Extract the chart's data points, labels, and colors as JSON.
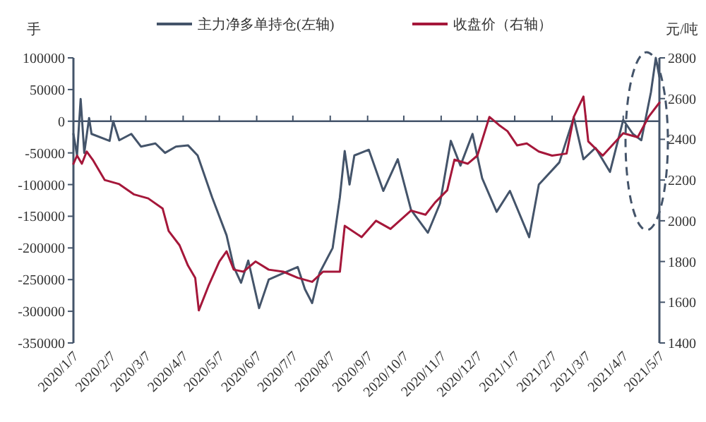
{
  "chart_data": {
    "type": "line",
    "ylabel": "手",
    "y2label": "元/吨",
    "legend": "top",
    "marker": "none",
    "line_style": "solid",
    "xlim": [
      "2020-01-07",
      "2021-05-07"
    ],
    "xticks": [
      {
        "value": "2020-01-07",
        "label": "2020/1/7"
      },
      {
        "value": "2020-02-07",
        "label": "2020/2/7"
      },
      {
        "value": "2020-03-07",
        "label": "2020/3/7"
      },
      {
        "value": "2020-04-07",
        "label": "2020/4/7"
      },
      {
        "value": "2020-05-07",
        "label": "2020/5/7"
      },
      {
        "value": "2020-06-07",
        "label": "2020/6/7"
      },
      {
        "value": "2020-07-07",
        "label": "2020/7/7"
      },
      {
        "value": "2020-08-07",
        "label": "2020/8/7"
      },
      {
        "value": "2020-09-07",
        "label": "2020/9/7"
      },
      {
        "value": "2020-10-07",
        "label": "2020/10/7"
      },
      {
        "value": "2020-11-07",
        "label": "2020/11/7"
      },
      {
        "value": "2020-12-07",
        "label": "2020/12/7"
      },
      {
        "value": "2021-01-07",
        "label": "2021/1/7"
      },
      {
        "value": "2021-02-07",
        "label": "2021/2/7"
      },
      {
        "value": "2021-03-07",
        "label": "2021/3/7"
      },
      {
        "value": "2021-04-07",
        "label": "2021/4/7"
      },
      {
        "value": "2021-05-07",
        "label": "2021/5/7"
      }
    ],
    "ylim": [
      -350000,
      100000
    ],
    "yticks": [
      -350000,
      -300000,
      -250000,
      -200000,
      -150000,
      -100000,
      -50000,
      0,
      50000,
      100000
    ],
    "y2lim": [
      1400,
      2800
    ],
    "y2ticks": [
      1400,
      1600,
      1800,
      2000,
      2200,
      2400,
      2600,
      2800
    ],
    "series": [
      {
        "name": "主力净多单持仓(左轴)",
        "color": "#44546a",
        "x": [
          "2020-01-07",
          "2020-01-10",
          "2020-01-13",
          "2020-01-16",
          "2020-01-20",
          "2020-01-22",
          "2020-02-06",
          "2020-02-09",
          "2020-02-14",
          "2020-02-24",
          "2020-03-03",
          "2020-03-15",
          "2020-03-23",
          "2020-04-01",
          "2020-04-11",
          "2020-04-19",
          "2020-05-01",
          "2020-05-13",
          "2020-05-19",
          "2020-05-25",
          "2020-05-31",
          "2020-06-09",
          "2020-06-17",
          "2020-06-29",
          "2020-07-11",
          "2020-07-17",
          "2020-07-23",
          "2020-07-29",
          "2020-08-09",
          "2020-08-15",
          "2020-08-19",
          "2020-08-23",
          "2020-08-27",
          "2020-09-08",
          "2020-09-20",
          "2020-10-02",
          "2020-10-13",
          "2020-10-27",
          "2020-11-06",
          "2020-11-15",
          "2020-11-23",
          "2020-12-03",
          "2020-12-11",
          "2020-12-23",
          "2021-01-03",
          "2021-01-19",
          "2021-01-27",
          "2021-02-13",
          "2021-02-25",
          "2021-03-05",
          "2021-03-15",
          "2021-03-27",
          "2021-04-07",
          "2021-04-15",
          "2021-04-22",
          "2021-04-30",
          "2021-05-04",
          "2021-05-07"
        ],
        "values": [
          -20000,
          -54000,
          35000,
          -50000,
          5000,
          -20000,
          -31000,
          0,
          -30000,
          -20000,
          -40000,
          -35000,
          -50000,
          -40000,
          -38000,
          -54000,
          -120000,
          -180000,
          -230000,
          -255000,
          -220000,
          -295000,
          -250000,
          -240000,
          -230000,
          -265000,
          -287000,
          -240000,
          -200000,
          -120000,
          -47000,
          -100000,
          -54000,
          -45000,
          -110000,
          -60000,
          -140000,
          -176000,
          -130000,
          -31000,
          -70000,
          -20000,
          -90000,
          -143000,
          -110000,
          -183000,
          -100000,
          -65000,
          6000,
          -60000,
          -42000,
          -80000,
          2000,
          -20000,
          -30000,
          46000,
          100000,
          70000
        ]
      },
      {
        "name": "收盘价（右轴）",
        "color": "#a5173a",
        "axis": "y2",
        "x": [
          "2020-01-07",
          "2020-01-10",
          "2020-01-14",
          "2020-01-18",
          "2020-01-23",
          "2020-02-02",
          "2020-02-14",
          "2020-02-26",
          "2020-03-09",
          "2020-03-21",
          "2020-03-26",
          "2020-04-04",
          "2020-04-11",
          "2020-04-17",
          "2020-04-20",
          "2020-04-28",
          "2020-05-07",
          "2020-05-13",
          "2020-05-19",
          "2020-05-27",
          "2020-06-06",
          "2020-06-17",
          "2020-06-29",
          "2020-07-11",
          "2020-07-23",
          "2020-08-01",
          "2020-08-15",
          "2020-08-19",
          "2020-09-02",
          "2020-09-14",
          "2020-09-26",
          "2020-10-13",
          "2020-10-25",
          "2020-11-02",
          "2020-11-12",
          "2020-11-18",
          "2020-11-29",
          "2020-12-07",
          "2020-12-17",
          "2020-12-25",
          "2021-01-01",
          "2021-01-09",
          "2021-01-17",
          "2021-01-27",
          "2021-02-07",
          "2021-02-19",
          "2021-02-25",
          "2021-03-05",
          "2021-03-09",
          "2021-03-21",
          "2021-04-07",
          "2021-04-19",
          "2021-04-28",
          "2021-05-07"
        ],
        "values": [
          2280,
          2320,
          2280,
          2340,
          2300,
          2200,
          2180,
          2130,
          2110,
          2060,
          1950,
          1880,
          1780,
          1720,
          1560,
          1680,
          1800,
          1850,
          1760,
          1750,
          1800,
          1760,
          1750,
          1720,
          1700,
          1750,
          1750,
          1975,
          1920,
          2000,
          1960,
          2050,
          2030,
          2090,
          2150,
          2300,
          2280,
          2320,
          2510,
          2470,
          2440,
          2370,
          2380,
          2340,
          2320,
          2330,
          2510,
          2610,
          2390,
          2320,
          2430,
          2410,
          2510,
          2580
        ]
      }
    ]
  }
}
